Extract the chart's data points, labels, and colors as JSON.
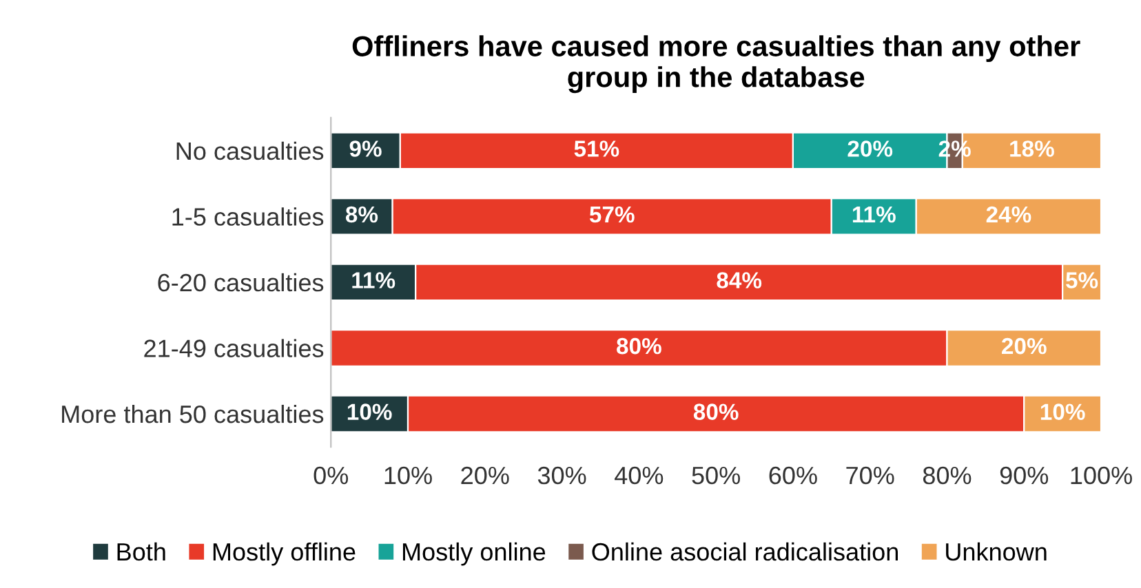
{
  "chart_data": {
    "type": "bar",
    "orientation": "horizontal",
    "stacked": true,
    "title": "Offliners have caused more casualties than any other\ngroup in the database",
    "categories": [
      "No casualties",
      "1-5 casualties",
      "6-20 casualties",
      "21-49 casualties",
      "More than 50 casualties"
    ],
    "series": [
      {
        "name": "Both",
        "color": "#1f3b3e",
        "values": [
          9,
          8,
          11,
          0,
          10
        ],
        "value_labels": [
          "9%",
          "8%",
          "11%",
          null,
          "10%"
        ]
      },
      {
        "name": "Mostly offline",
        "color": "#e83a28",
        "values": [
          51,
          57,
          84,
          80,
          80
        ],
        "value_labels": [
          "51%",
          "57%",
          "84%",
          "80%",
          "80%"
        ]
      },
      {
        "name": "Mostly online",
        "color": "#17a398",
        "values": [
          20,
          11,
          0,
          0,
          0
        ],
        "value_labels": [
          "20%",
          "11%",
          null,
          null,
          null
        ]
      },
      {
        "name": "Online asocial radicalisation",
        "color": "#7b5a4e",
        "values": [
          2,
          0,
          0,
          0,
          0
        ],
        "value_labels": [
          "2%",
          null,
          null,
          null,
          null
        ]
      },
      {
        "name": "Unknown",
        "color": "#f0a455",
        "values": [
          18,
          24,
          5,
          20,
          10
        ],
        "value_labels": [
          "18%",
          "24%",
          "5%",
          "20%",
          "10%"
        ]
      }
    ],
    "xlim": [
      0,
      100
    ],
    "xticks": [
      {
        "value": 0,
        "label": "0%"
      },
      {
        "value": 10,
        "label": "10%"
      },
      {
        "value": 20,
        "label": "20%"
      },
      {
        "value": 30,
        "label": "30%"
      },
      {
        "value": 40,
        "label": "40%"
      },
      {
        "value": 50,
        "label": "50%"
      },
      {
        "value": 60,
        "label": "60%"
      },
      {
        "value": 70,
        "label": "70%"
      },
      {
        "value": 80,
        "label": "80%"
      },
      {
        "value": 90,
        "label": "90%"
      },
      {
        "value": 100,
        "label": "100%"
      }
    ],
    "grid": false,
    "legend": "bottom"
  }
}
